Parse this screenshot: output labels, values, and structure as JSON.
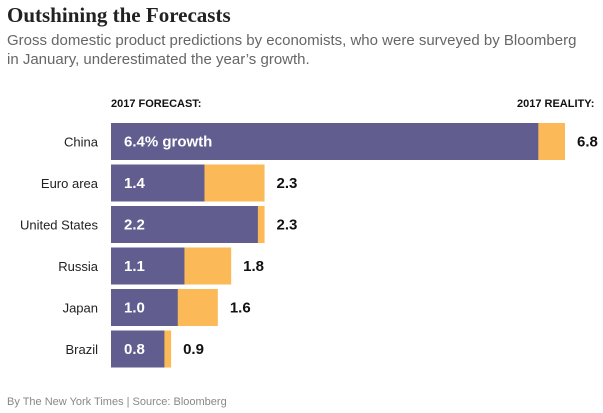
{
  "header": {
    "title": "Outshining the Forecasts",
    "subtitle": "Gross domestic product predictions by economists, who were surveyed by Bloomberg in January, underestimated the year’s growth."
  },
  "columns": {
    "forecast_label": "2017 FORECAST:",
    "reality_label": "2017 REALITY:"
  },
  "colors": {
    "forecast": "#615e8f",
    "reality": "#fbb957"
  },
  "chart_data": {
    "type": "bar",
    "orientation": "horizontal",
    "categories": [
      "China",
      "Euro area",
      "United States",
      "Russia",
      "Japan",
      "Brazil"
    ],
    "series": [
      {
        "name": "2017 FORECAST:",
        "values": [
          6.4,
          1.4,
          2.2,
          1.1,
          1.0,
          0.8
        ]
      },
      {
        "name": "2017 REALITY:",
        "values": [
          6.8,
          2.3,
          2.3,
          1.8,
          1.6,
          0.9
        ]
      }
    ],
    "forecast_labels": [
      "6.4% growth",
      "1.4",
      "2.2",
      "1.1",
      "1.0",
      "0.8"
    ],
    "reality_labels": [
      "6.8",
      "2.3",
      "2.3",
      "1.8",
      "1.6",
      "0.9"
    ],
    "xlim": [
      0,
      6.8
    ],
    "grid": false
  },
  "footer": {
    "source": "By The New York Times | Source: Bloomberg"
  }
}
